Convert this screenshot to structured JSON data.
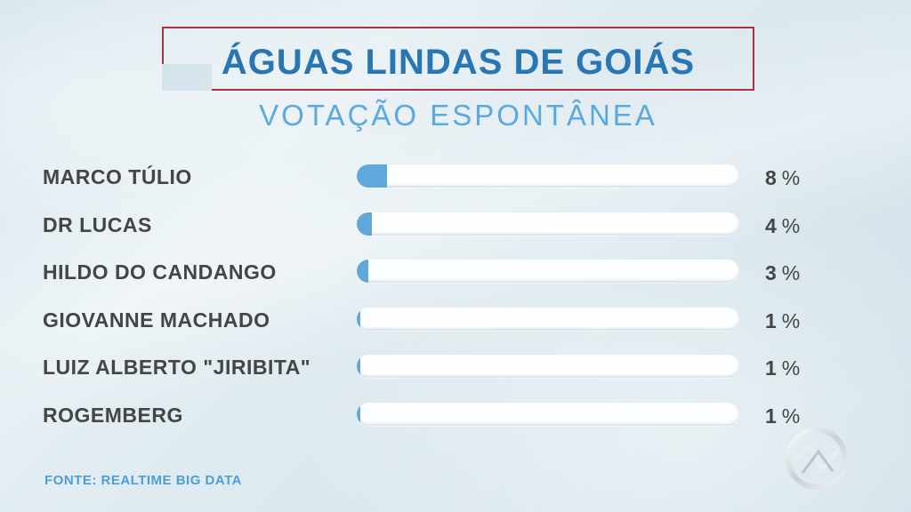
{
  "header": {
    "title": "ÁGUAS LINDAS DE GOIÁS",
    "subtitle": "VOTAÇÃO ESPONTÂNEA"
  },
  "colors": {
    "bar_fill": "#5ea8dc",
    "bar_track": "#fdfeff",
    "title": "#2876b4",
    "subtitle": "#5ca9df",
    "frame": "#a8323e",
    "label": "#454545"
  },
  "chart_data": {
    "type": "bar",
    "orientation": "horizontal",
    "title": "ÁGUAS LINDAS DE GOIÁS",
    "subtitle": "VOTAÇÃO ESPONTÂNEA",
    "categories": [
      "MARCO TÚLIO",
      "DR LUCAS",
      "HILDO DO CANDANGO",
      "GIOVANNE MACHADO",
      "LUIZ ALBERTO \"JIRIBITA\"",
      "ROGEMBERG"
    ],
    "values": [
      8,
      4,
      3,
      1,
      1,
      1
    ],
    "unit": "%",
    "value_labels": [
      "8",
      "4",
      "3",
      "1",
      "1",
      "1"
    ]
  },
  "source": "FONTE: REALTIME BIG DATA",
  "logo": {
    "icon": "broadcaster-logo-icon"
  }
}
